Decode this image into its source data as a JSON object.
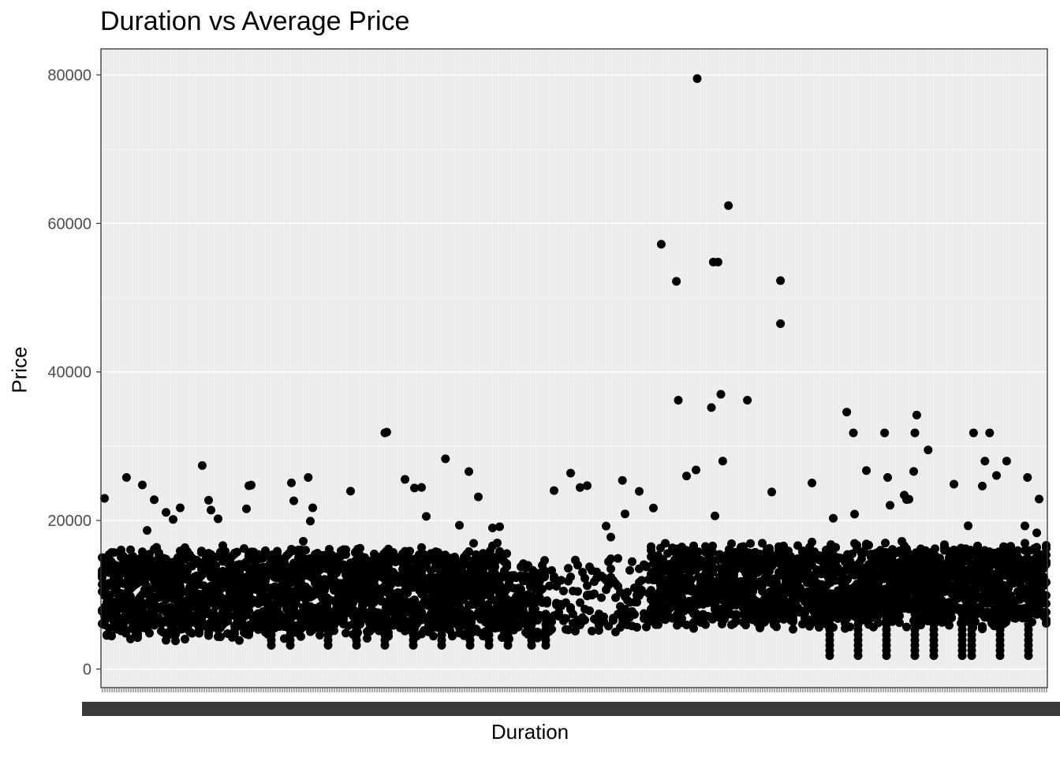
{
  "chart_data": {
    "type": "scatter",
    "title": "Duration vs Average Price",
    "xlabel": "Duration",
    "ylabel": "Price",
    "ylim": [
      -2500,
      83500
    ],
    "y_ticks": [
      "0",
      "20000",
      "40000",
      "60000",
      "80000"
    ],
    "x_axis": "categorical, several hundred overlapping unreadable duration tick labels",
    "grid": true,
    "background": "#ebebeb",
    "point_color": "#000000",
    "notable_points": [
      {
        "x_fraction": 0.63,
        "y": 79500
      },
      {
        "x_fraction": 0.663,
        "y": 62400
      },
      {
        "x_fraction": 0.592,
        "y": 57200
      },
      {
        "x_fraction": 0.647,
        "y": 54800
      },
      {
        "x_fraction": 0.652,
        "y": 54800
      },
      {
        "x_fraction": 0.608,
        "y": 52200
      },
      {
        "x_fraction": 0.718,
        "y": 52300
      },
      {
        "x_fraction": 0.718,
        "y": 46500
      },
      {
        "x_fraction": 0.655,
        "y": 37000
      },
      {
        "x_fraction": 0.61,
        "y": 36200
      },
      {
        "x_fraction": 0.683,
        "y": 36200
      },
      {
        "x_fraction": 0.645,
        "y": 35200
      },
      {
        "x_fraction": 0.788,
        "y": 34600
      },
      {
        "x_fraction": 0.862,
        "y": 34200
      },
      {
        "x_fraction": 0.3,
        "y": 31800
      },
      {
        "x_fraction": 0.302,
        "y": 31900
      },
      {
        "x_fraction": 0.795,
        "y": 31800
      },
      {
        "x_fraction": 0.828,
        "y": 31800
      },
      {
        "x_fraction": 0.86,
        "y": 31800
      },
      {
        "x_fraction": 0.922,
        "y": 31800
      },
      {
        "x_fraction": 0.939,
        "y": 31800
      },
      {
        "x_fraction": 0.364,
        "y": 28300
      },
      {
        "x_fraction": 0.107,
        "y": 27400
      },
      {
        "x_fraction": 0.657,
        "y": 28000
      },
      {
        "x_fraction": 0.874,
        "y": 29500
      },
      {
        "x_fraction": 0.027,
        "y": 25800
      },
      {
        "x_fraction": 0.219,
        "y": 25800
      },
      {
        "x_fraction": 0.551,
        "y": 25400
      },
      {
        "x_fraction": 0.979,
        "y": 25800
      },
      {
        "x_fraction": 0.957,
        "y": 28000
      },
      {
        "x_fraction": 0.934,
        "y": 28000
      }
    ]
  }
}
